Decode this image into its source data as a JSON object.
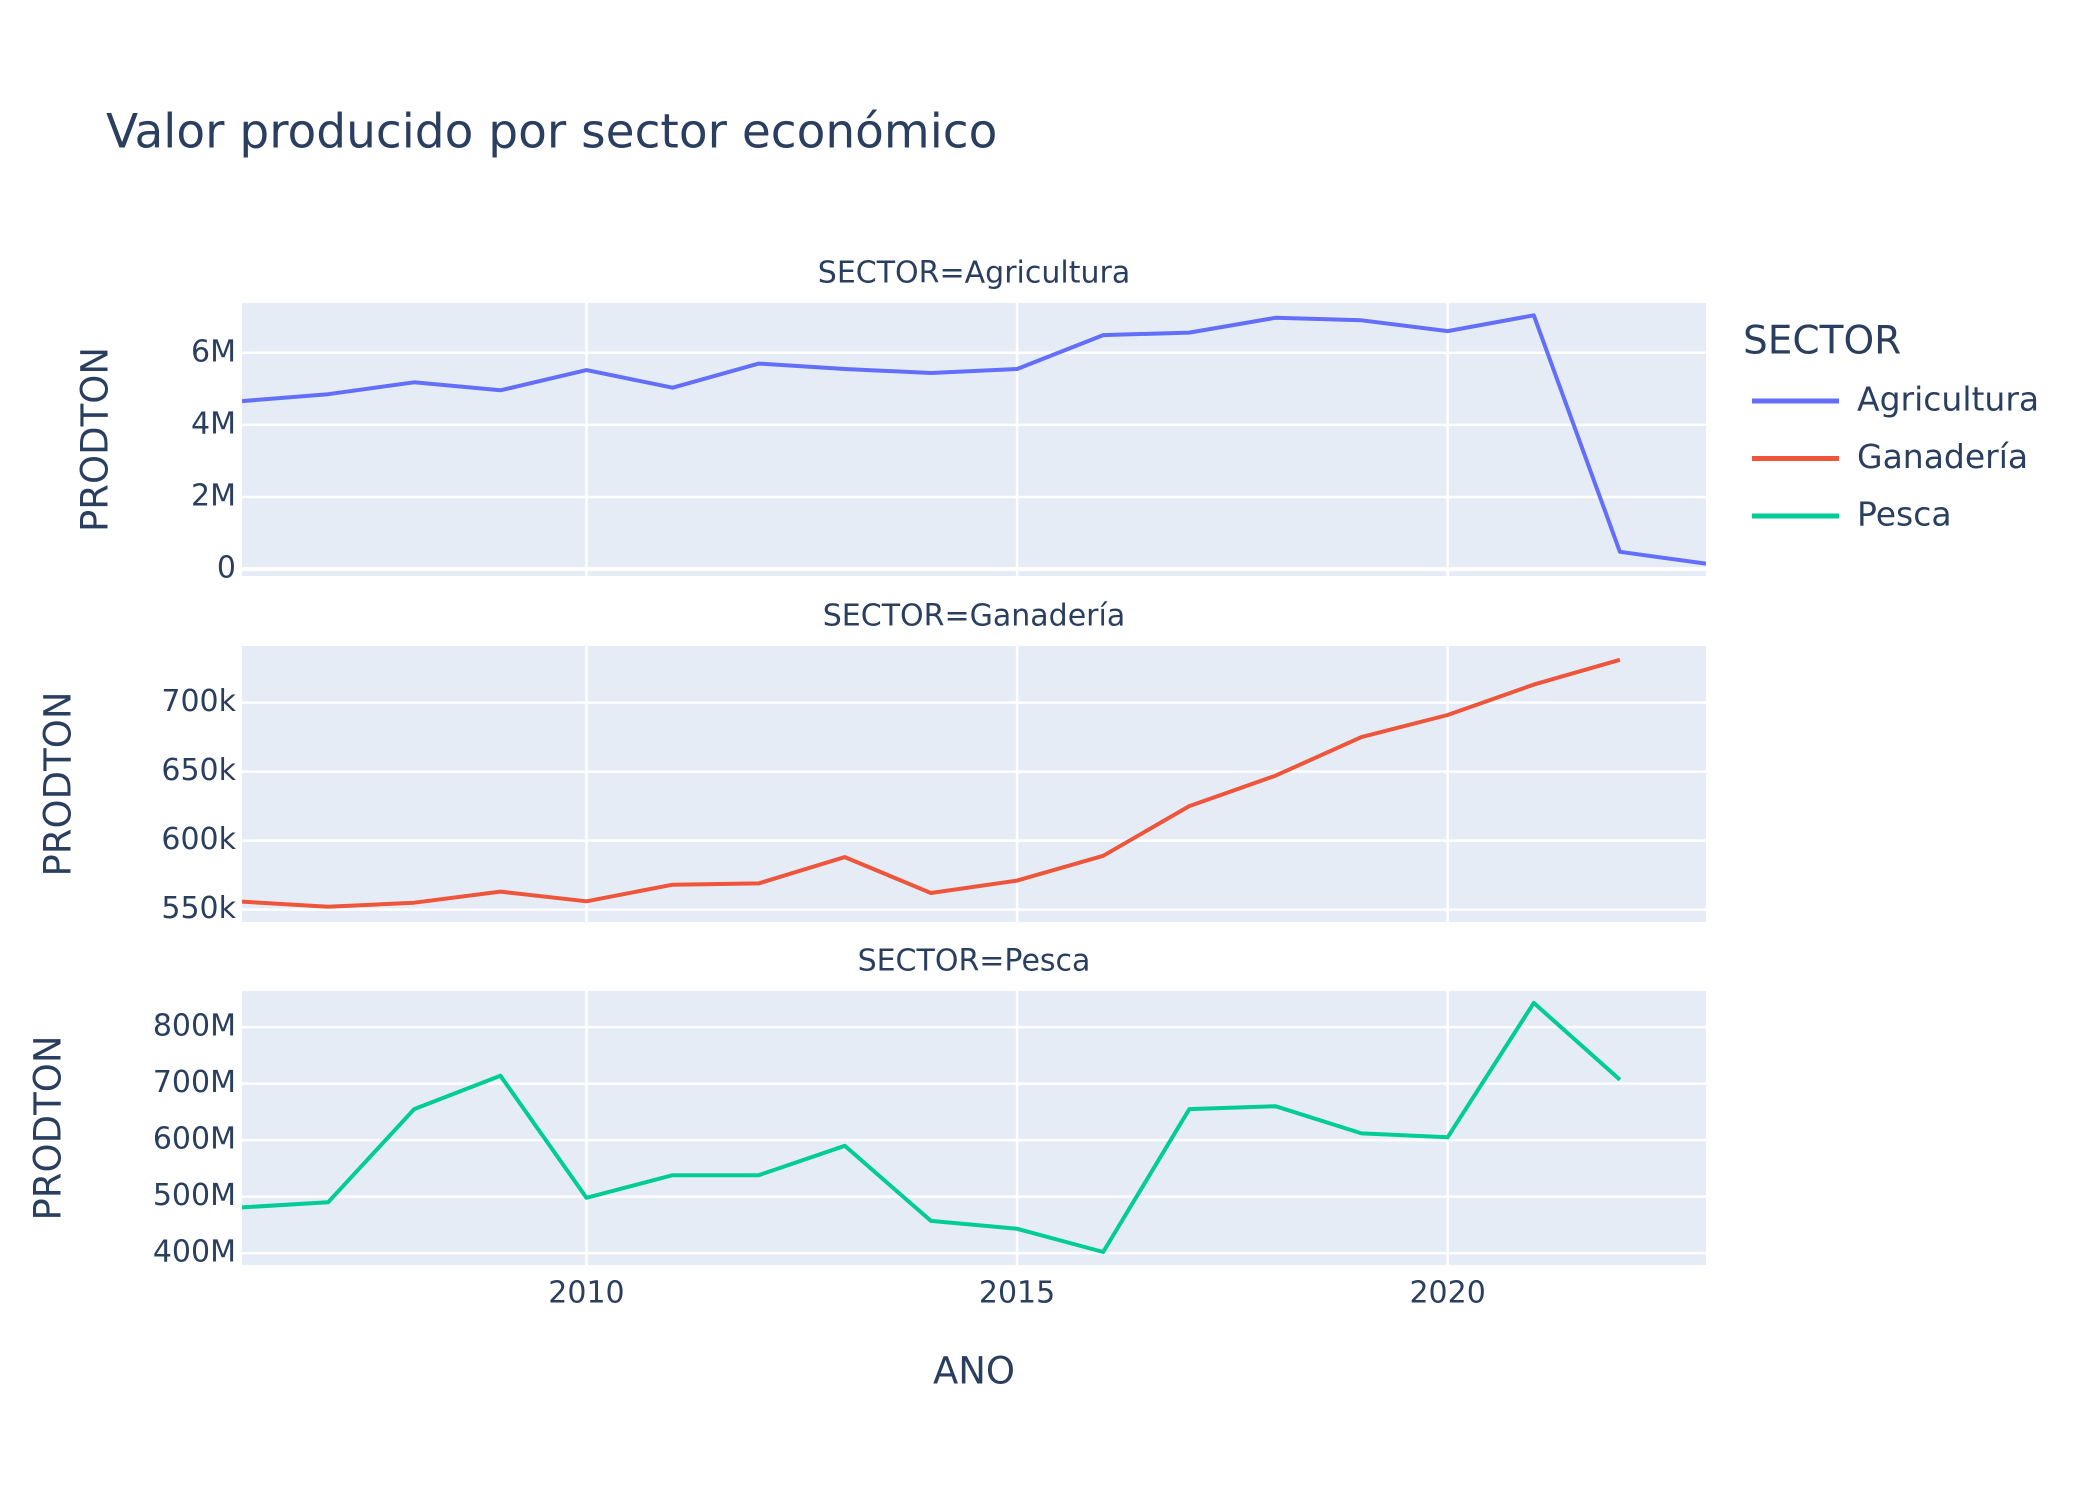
{
  "chart_data": {
    "type": "line",
    "title": "Valor producido por sector económico",
    "xlabel": "ANO",
    "legend_title": "SECTOR",
    "legend": "right",
    "grid": true,
    "x": [
      2006,
      2007,
      2008,
      2009,
      2010,
      2011,
      2012,
      2013,
      2014,
      2015,
      2016,
      2017,
      2018,
      2019,
      2020,
      2021,
      2022,
      2023
    ],
    "xlim": [
      2006,
      2023
    ],
    "xticks": [
      2010,
      2015,
      2020
    ],
    "subplots": [
      {
        "title": "SECTOR=Agricultura",
        "ylabel": "PRODTON",
        "ylim": [
          -190000,
          7380000
        ],
        "yticks": [
          0,
          {
            "value": 2000000,
            "label": "2M"
          },
          {
            "value": 4000000,
            "label": "4M"
          },
          {
            "value": 6000000,
            "label": "6M"
          }
        ],
        "series": [
          {
            "name": "Agricultura",
            "color": "#636efa",
            "values": [
              4660000,
              4850000,
              5180000,
              4960000,
              5520000,
              5030000,
              5700000,
              5550000,
              5440000,
              5550000,
              6490000,
              6560000,
              6970000,
              6900000,
              6600000,
              7040000,
              480000,
              150000
            ]
          }
        ]
      },
      {
        "title": "SECTOR=Ganadería",
        "ylabel": "PRODTON",
        "ylim": [
          541000,
          741000
        ],
        "yticks": [
          {
            "value": 550000,
            "label": "550k"
          },
          {
            "value": 600000,
            "label": "600k"
          },
          {
            "value": 650000,
            "label": "650k"
          },
          {
            "value": 700000,
            "label": "700k"
          }
        ],
        "series": [
          {
            "name": "Ganadería",
            "color": "#ef553b",
            "values": [
              555800,
              552000,
              555000,
              563000,
              556000,
              568000,
              569000,
              588000,
              562000,
              571000,
              589000,
              625000,
              647000,
              675000,
              691000,
              713000,
              731000,
              null
            ]
          }
        ]
      },
      {
        "title": "SECTOR=Pesca",
        "ylabel": "PRODTON",
        "ylim": [
          379000000,
          864000000
        ],
        "yticks": [
          {
            "value": 400000000,
            "label": "400M"
          },
          {
            "value": 500000000,
            "label": "500M"
          },
          {
            "value": 600000000,
            "label": "600M"
          },
          {
            "value": 700000000,
            "label": "700M"
          },
          {
            "value": 800000000,
            "label": "800M"
          }
        ],
        "series": [
          {
            "name": "Pesca",
            "color": "#00cc96",
            "values": [
              481000000,
              490000000,
              655000000,
              714000000,
              498000000,
              538000000,
              538000000,
              590000000,
              457000000,
              443000000,
              402000000,
              655000000,
              660000000,
              612000000,
              605000000,
              843000000,
              707000000,
              null
            ]
          }
        ]
      }
    ]
  }
}
